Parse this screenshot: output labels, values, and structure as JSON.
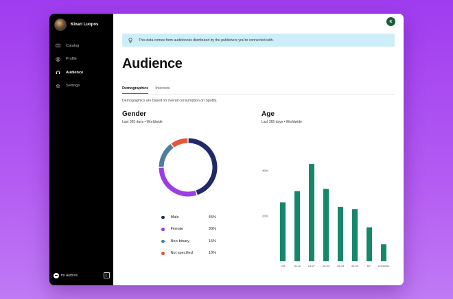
{
  "profile": {
    "name": "Kinari Luopos"
  },
  "nav": {
    "items": [
      {
        "label": "Catalog",
        "icon": "book-icon",
        "active": false
      },
      {
        "label": "Profile",
        "icon": "user-icon",
        "active": false
      },
      {
        "label": "Audience",
        "icon": "headphones-icon",
        "active": true
      },
      {
        "label": "Settings",
        "icon": "gear-icon",
        "active": false
      }
    ]
  },
  "footer": {
    "brand": "for Authors"
  },
  "header": {
    "user_initial": "K"
  },
  "banner": {
    "text": "This data comes from audiobooks distributed by the publishers you're connected with."
  },
  "page": {
    "title": "Audience"
  },
  "tabs": [
    {
      "label": "Demographics",
      "active": true
    },
    {
      "label": "Interests",
      "active": false
    }
  ],
  "description": "Demographics are based on overall consumption on Spotify.",
  "gender": {
    "title": "Gender",
    "subtitle": "Last 365 days • Worldwide",
    "legend": [
      {
        "label": "Male",
        "value": "45%",
        "color": "#1f2a6b"
      },
      {
        "label": "Female",
        "value": "30%",
        "color": "#9b3ee6"
      },
      {
        "label": "Non-binary",
        "value": "15%",
        "color": "#4f7d9c"
      },
      {
        "label": "Not specified",
        "value": "10%",
        "color": "#e8553a"
      }
    ]
  },
  "age": {
    "title": "Age",
    "subtitle": "Last 365 days • Worldwide"
  },
  "chart_data": [
    {
      "type": "pie",
      "categories": [
        "Male",
        "Female",
        "Non-binary",
        "Not specified"
      ],
      "values": [
        45,
        30,
        15,
        10
      ],
      "colors": [
        "#1f2a6b",
        "#9b3ee6",
        "#4f7d9c",
        "#e8553a"
      ]
    },
    {
      "type": "bar",
      "categories": [
        "<18",
        "18-22",
        "23-27",
        "28-34",
        "35-44",
        "45-59",
        "60+",
        "Unknown"
      ],
      "values": [
        26,
        31,
        43,
        32,
        24,
        23,
        15,
        7.5
      ],
      "ylim": [
        0,
        50
      ],
      "yticks": [
        {
          "value": 20,
          "label": "20%"
        },
        {
          "value": 40,
          "label": "40%"
        }
      ],
      "color": "#17876a",
      "grid": false
    }
  ]
}
